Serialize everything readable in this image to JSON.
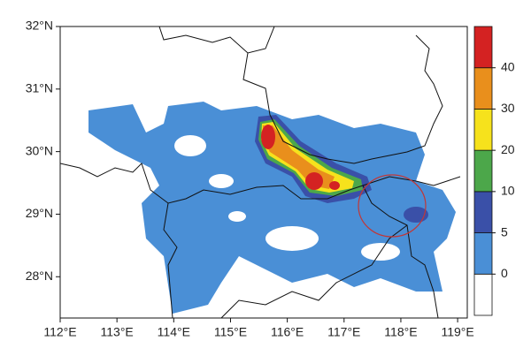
{
  "map": {
    "xlim": [
      112,
      119.17
    ],
    "ylim": [
      27.34,
      32
    ],
    "xticks": [
      {
        "value": 112,
        "label": "112°E"
      },
      {
        "value": 113,
        "label": "113°E"
      },
      {
        "value": 114,
        "label": "114°E"
      },
      {
        "value": 115,
        "label": "115°E"
      },
      {
        "value": 116,
        "label": "116°E"
      },
      {
        "value": 117,
        "label": "117°E"
      },
      {
        "value": 118,
        "label": "118°E"
      },
      {
        "value": 119,
        "label": "119°E"
      }
    ],
    "yticks": [
      {
        "value": 28,
        "label": "28°N"
      },
      {
        "value": 29,
        "label": "29°N"
      },
      {
        "value": 30,
        "label": "30°N"
      },
      {
        "value": 31,
        "label": "31°N"
      },
      {
        "value": 32,
        "label": "32°N"
      }
    ],
    "colorbar": {
      "levels": [
        0,
        5,
        10,
        20,
        30,
        40
      ],
      "colors": [
        "#ffffff",
        "#4a8fd6",
        "#3a50a8",
        "#4ca74a",
        "#f6e21c",
        "#e98f1c",
        "#d42222"
      ]
    }
  }
}
